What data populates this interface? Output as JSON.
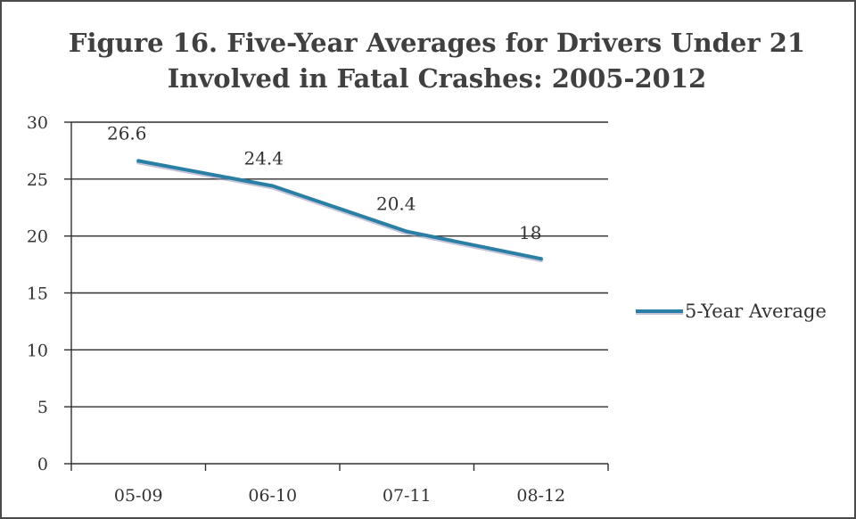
{
  "chart_data": {
    "type": "line",
    "title": "Figure 16. Five-Year Averages for Drivers Under 21",
    "subtitle": "Involved in Fatal Crashes: 2005-2012",
    "xlabel": "",
    "ylabel": "",
    "categories": [
      "05-09",
      "06-10",
      "07-11",
      "08-12"
    ],
    "series": [
      {
        "name": "5-Year Average",
        "values": [
          26.6,
          24.4,
          20.4,
          18
        ],
        "labels": [
          "26.6",
          "24.4",
          "20.4",
          "18"
        ]
      }
    ],
    "ylim": [
      0,
      30
    ],
    "yticks": [
      "0",
      "5",
      "10",
      "15",
      "20",
      "25",
      "30"
    ],
    "grid": true,
    "legend": "right",
    "colors": {
      "line": "#2a7fa5",
      "line_shadow": "#9b93b9",
      "grid": "#2f2f2f",
      "axis": "#2f2f2f"
    }
  }
}
